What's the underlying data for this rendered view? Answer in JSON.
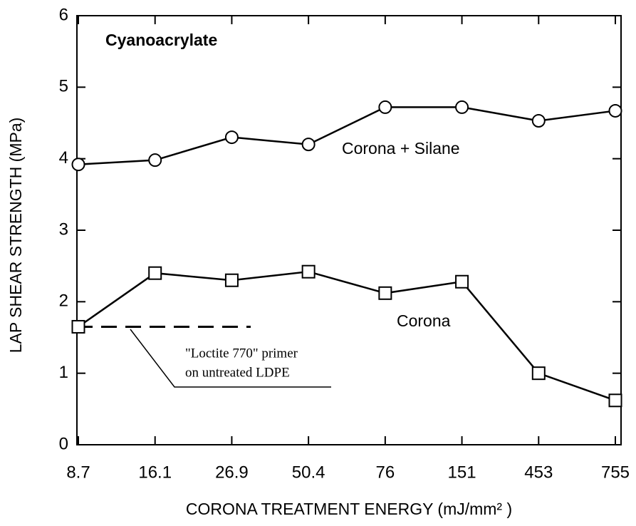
{
  "chart_data": {
    "type": "line",
    "title": "Cyanoacrylate",
    "x_label": "CORONA TREATMENT ENERGY  (mJ/mm² )",
    "y_label": "LAP SHEAR STRENGTH  (MPa)",
    "categories": [
      "8.7",
      "16.1",
      "26.9",
      "50.4",
      "76",
      "151",
      "453",
      "755"
    ],
    "series": [
      {
        "name": "Corona + Silane",
        "color": "#000000",
        "marker": "circle",
        "values": [
          3.92,
          3.98,
          4.3,
          4.2,
          4.72,
          4.72,
          4.53,
          4.67
        ]
      },
      {
        "name": "Corona",
        "color": "#000000",
        "marker": "square",
        "values": [
          1.65,
          2.4,
          2.3,
          2.42,
          2.12,
          2.28,
          1.0,
          0.62
        ]
      }
    ],
    "reference_line": {
      "value": 1.65,
      "label": [
        "\"Loctite 770\" primer",
        "on untreated LDPE"
      ]
    },
    "ylim": [
      0,
      6
    ],
    "yticks": [
      0,
      1,
      2,
      3,
      4,
      5,
      6
    ],
    "grid": false
  }
}
